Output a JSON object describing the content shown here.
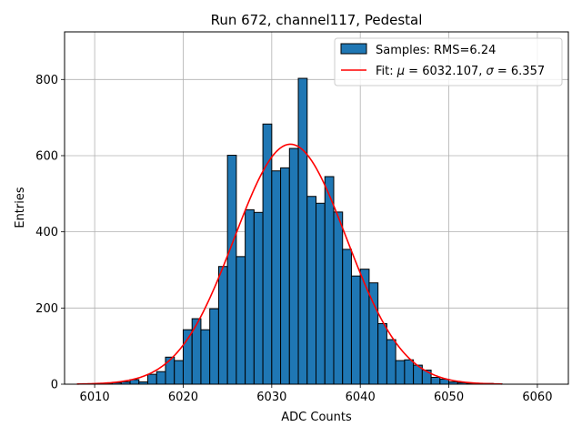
{
  "chart_data": {
    "type": "bar",
    "title": "Run 672, channel117, Pedestal",
    "xlabel": "ADC Counts",
    "ylabel": "Entries",
    "xlim": [
      6006.6,
      6063.5
    ],
    "ylim": [
      0,
      925
    ],
    "xticks": [
      6010,
      6020,
      6030,
      6040,
      6050,
      6060
    ],
    "yticks": [
      0,
      200,
      400,
      600,
      800
    ],
    "grid": true,
    "legend_position": "top-right",
    "histogram": {
      "name": "Samples: RMS=6.24",
      "color": "#1f77b4",
      "edgecolor": "#000000",
      "bin_width": 1,
      "bins": [
        [
          6010,
          1
        ],
        [
          6011,
          1
        ],
        [
          6012,
          4
        ],
        [
          6013,
          6
        ],
        [
          6014,
          12
        ],
        [
          6015,
          6
        ],
        [
          6016,
          26
        ],
        [
          6017,
          33
        ],
        [
          6018,
          71
        ],
        [
          6019,
          62
        ],
        [
          6020,
          143
        ],
        [
          6021,
          172
        ],
        [
          6022,
          143
        ],
        [
          6023,
          198
        ],
        [
          6024,
          309
        ],
        [
          6025,
          601
        ],
        [
          6026,
          335
        ],
        [
          6027,
          458
        ],
        [
          6028,
          451
        ],
        [
          6029,
          683
        ],
        [
          6030,
          560
        ],
        [
          6031,
          568
        ],
        [
          6032,
          619
        ],
        [
          6033,
          803
        ],
        [
          6034,
          493
        ],
        [
          6035,
          475
        ],
        [
          6036,
          545
        ],
        [
          6037,
          452
        ],
        [
          6038,
          354
        ],
        [
          6039,
          284
        ],
        [
          6040,
          302
        ],
        [
          6041,
          266
        ],
        [
          6042,
          159
        ],
        [
          6043,
          117
        ],
        [
          6044,
          62
        ],
        [
          6045,
          64
        ],
        [
          6046,
          50
        ],
        [
          6047,
          37
        ],
        [
          6048,
          18
        ],
        [
          6049,
          13
        ],
        [
          6050,
          6
        ],
        [
          6051,
          4
        ],
        [
          6052,
          2
        ],
        [
          6053,
          1
        ],
        [
          6054,
          2
        ],
        [
          6055,
          1
        ]
      ]
    },
    "fit": {
      "name": "Fit: μ = 6032.107, σ = 6.357",
      "legend_prefix": "Fit: ",
      "legend_mu": "μ",
      "legend_mu_value": " = 6032.107, ",
      "legend_sigma": "σ",
      "legend_sigma_value": " = 6.357",
      "color": "#ff0000",
      "mu": 6032.107,
      "sigma": 6.357,
      "amplitude": 630,
      "x_range": [
        6008,
        6056
      ]
    }
  }
}
